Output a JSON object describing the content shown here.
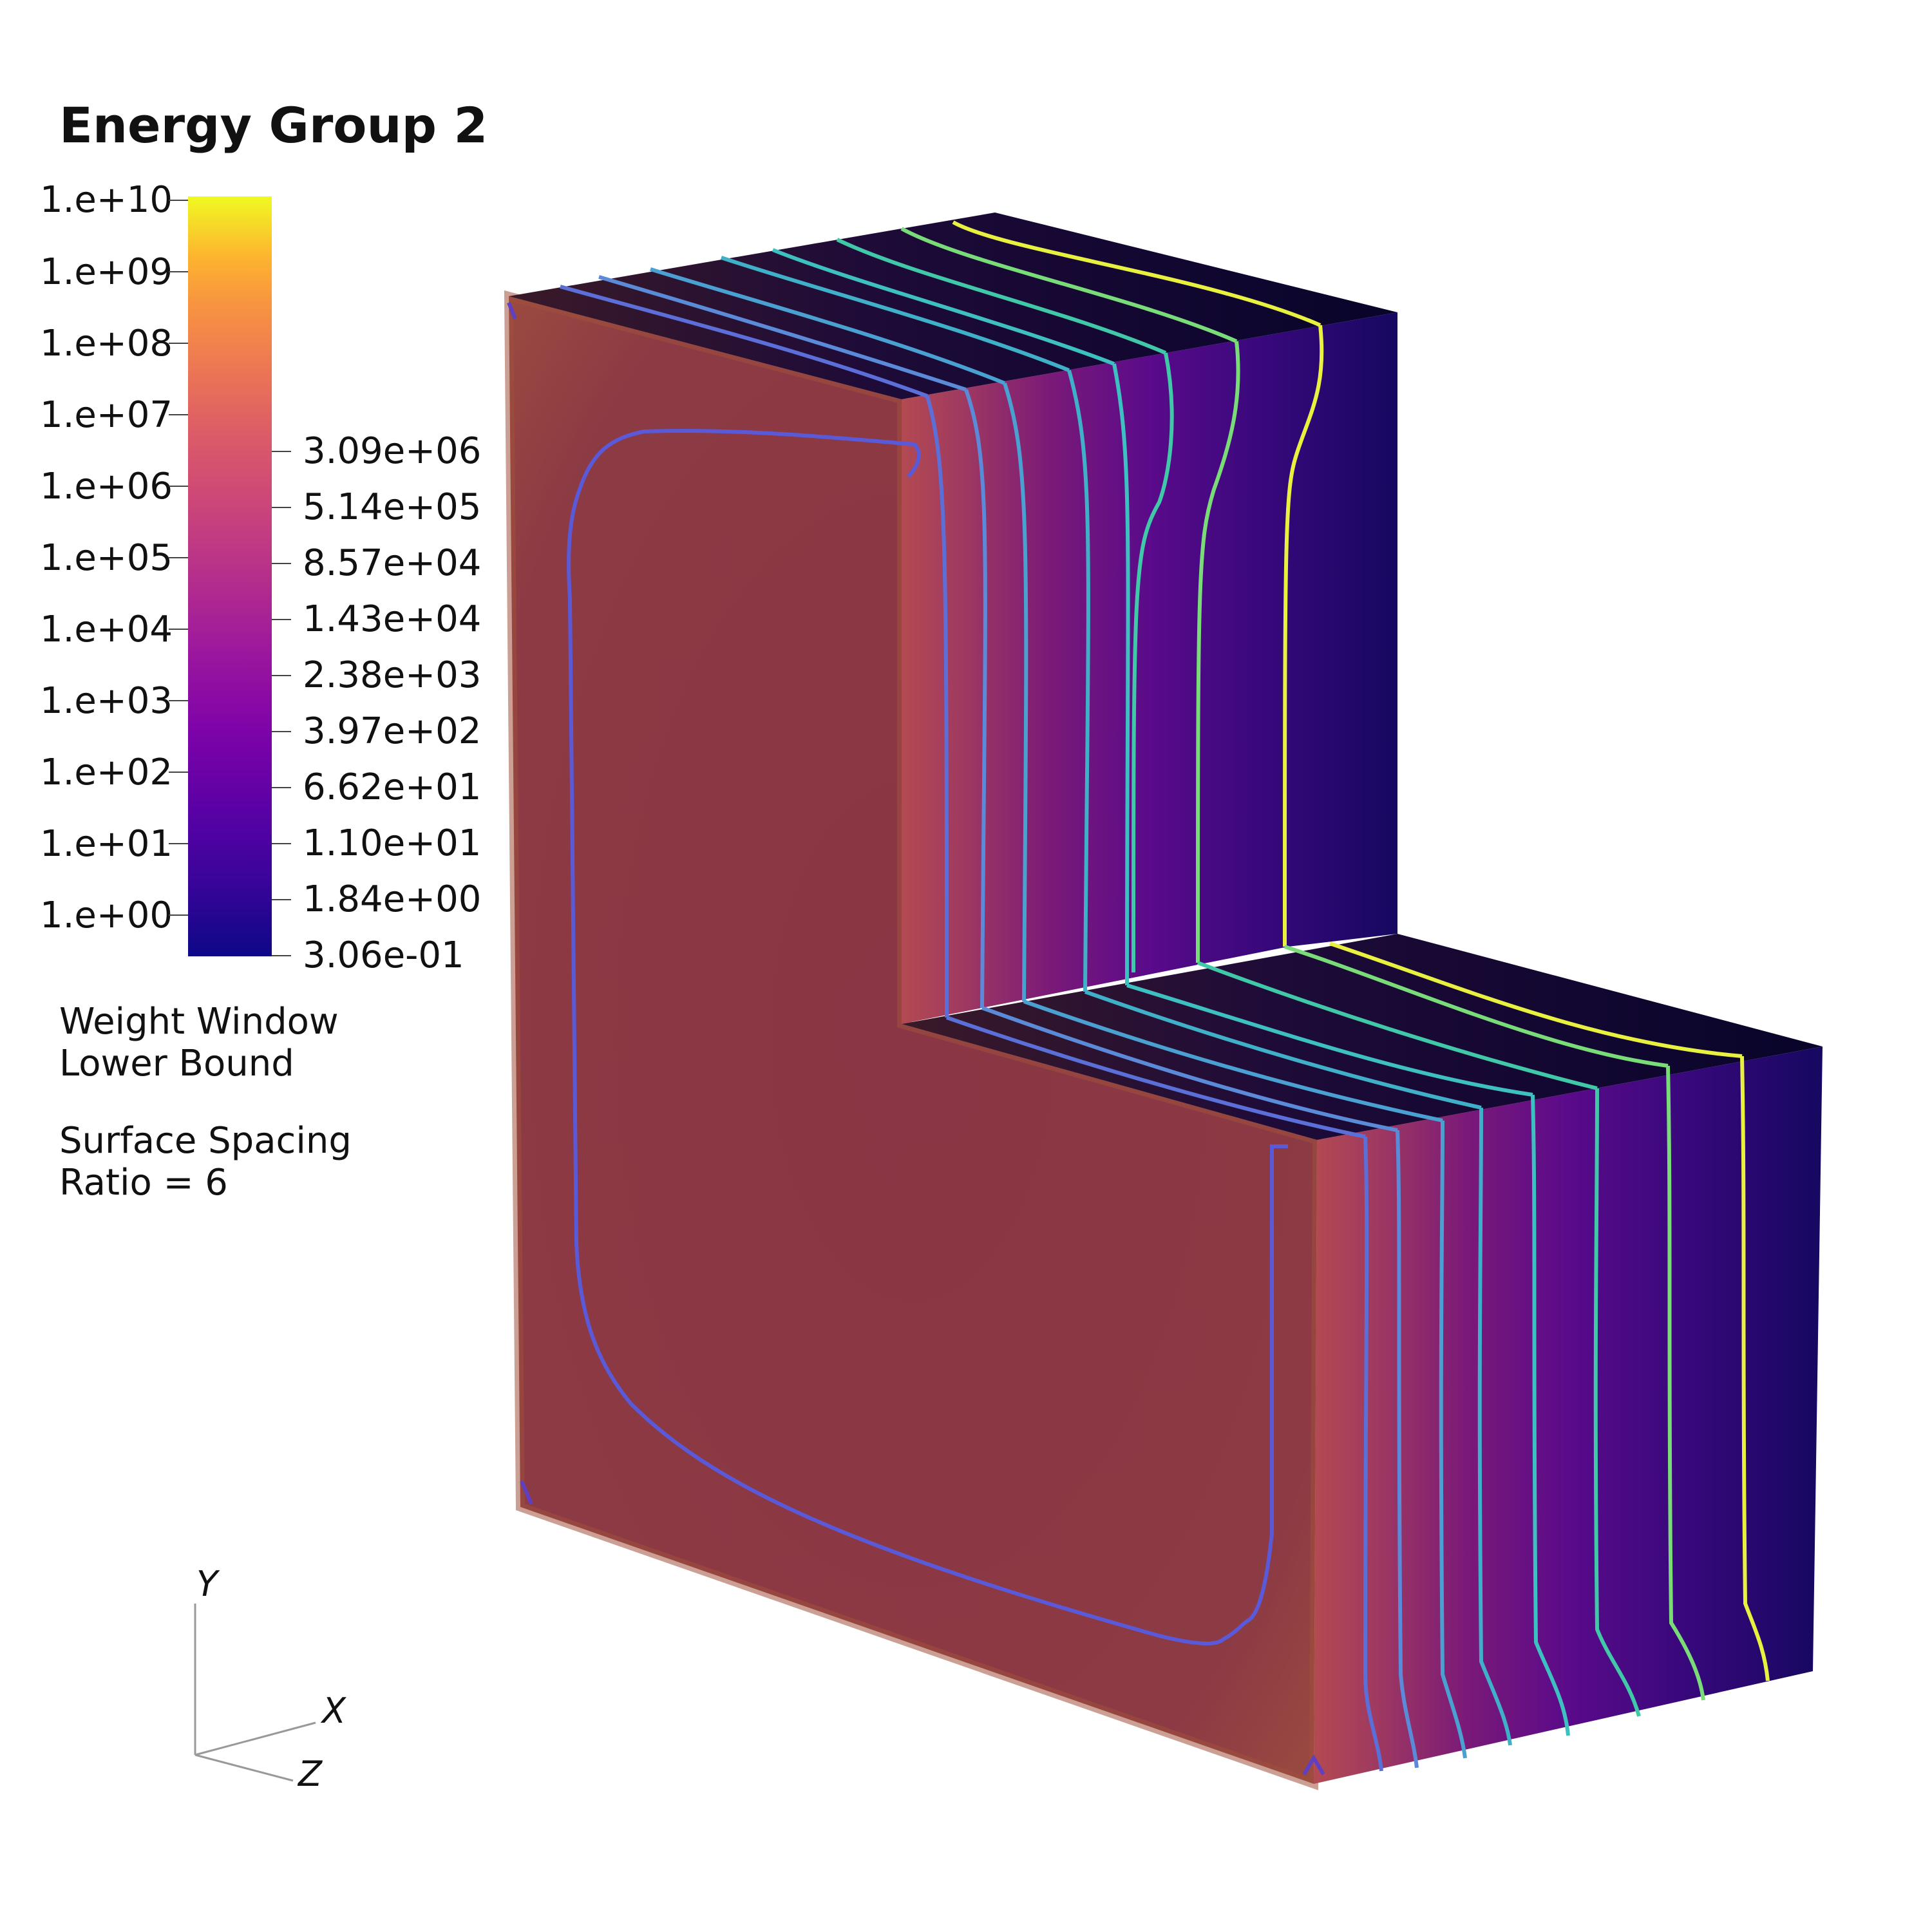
{
  "title": "Energy Group 2",
  "colorbar": {
    "left_ticks": [
      "1.e+10",
      "1.e+09",
      "1.e+08",
      "1.e+07",
      "1.e+06",
      "1.e+05",
      "1.e+04",
      "1.e+03",
      "1.e+02",
      "1.e+01",
      "1.e+00"
    ],
    "right_ticks": [
      "3.09e+06",
      "5.14e+05",
      "8.57e+04",
      "1.43e+04",
      "2.38e+03",
      "3.97e+02",
      "6.62e+01",
      "1.10e+01",
      "1.84e+00",
      "3.06e-01"
    ],
    "colormap": "plasma",
    "scale": "log"
  },
  "legend": {
    "line1": "Weight Window",
    "line2": "Lower Bound",
    "line3": "Surface Spacing",
    "line4": "Ratio = 6"
  },
  "axes": {
    "y": "Y",
    "x": "X",
    "z": "Z"
  },
  "colors": {
    "high_region": "#8a3a45",
    "low_region": "#14085a",
    "contour_low": "#5b5bd6",
    "contour_mid": "#3ab8b8",
    "contour_high": "#e8f040"
  }
}
